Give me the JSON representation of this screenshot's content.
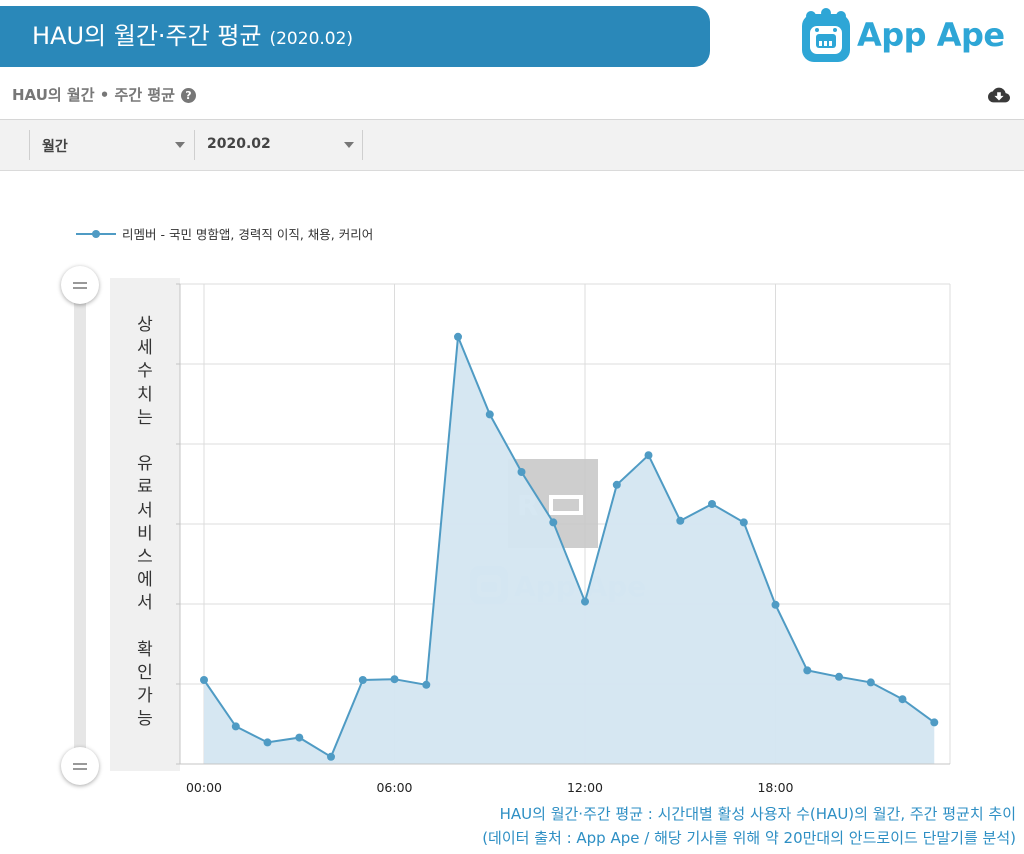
{
  "header": {
    "title": "HAU의 월간·주간 평균",
    "period": "(2020.02)",
    "logo_text": "App Ape"
  },
  "subheader": {
    "title": "HAU의 월간 • 주간 평균",
    "help_icon": "question-circle-icon",
    "download_icon": "cloud-download-icon"
  },
  "filters": {
    "granularity": "월간",
    "month": "2020.02"
  },
  "side_note": "상세수치는 유료서비스에서 확인가능",
  "caption": {
    "line1": "HAU의 월간·주간 평균 : 시간대별 활성 사용자 수(HAU)의 월간, 주간 평균치 추이",
    "line2": "(데이터 출처 : App Ape / 해당 기사를 위해 약 20만대의 안드로이드 단말기를 분석)"
  },
  "watermark": {
    "logo_text": "App Ape"
  },
  "colors": {
    "banner": "#2a88b9",
    "line": "#4f9bc4",
    "area": "#d4e6f1",
    "caption": "#2e8fc4"
  },
  "chart_data": {
    "type": "area",
    "title": "",
    "xlabel": "",
    "ylabel": "",
    "x": [
      0,
      1,
      2,
      3,
      4,
      5,
      6,
      7,
      8,
      9,
      10,
      11,
      12,
      13,
      14,
      15,
      16,
      17,
      18,
      19,
      20,
      21,
      22,
      23
    ],
    "x_tick_values": [
      0,
      6,
      12,
      18
    ],
    "x_tick_labels": [
      "00:00",
      "06:00",
      "12:00",
      "18:00"
    ],
    "ylim": [
      0,
      6
    ],
    "y_axis_labels_visible": false,
    "grid": true,
    "legend_position": "top-left",
    "series": [
      {
        "name": "리멤버 - 국민 명함앱, 경력직 이직, 채용, 커리어",
        "values": [
          1.05,
          0.47,
          0.27,
          0.33,
          0.09,
          1.05,
          1.06,
          0.99,
          5.34,
          4.37,
          3.65,
          3.02,
          2.03,
          3.49,
          3.86,
          3.04,
          3.25,
          3.02,
          1.99,
          1.17,
          1.09,
          1.02,
          0.81,
          0.52
        ]
      }
    ]
  }
}
